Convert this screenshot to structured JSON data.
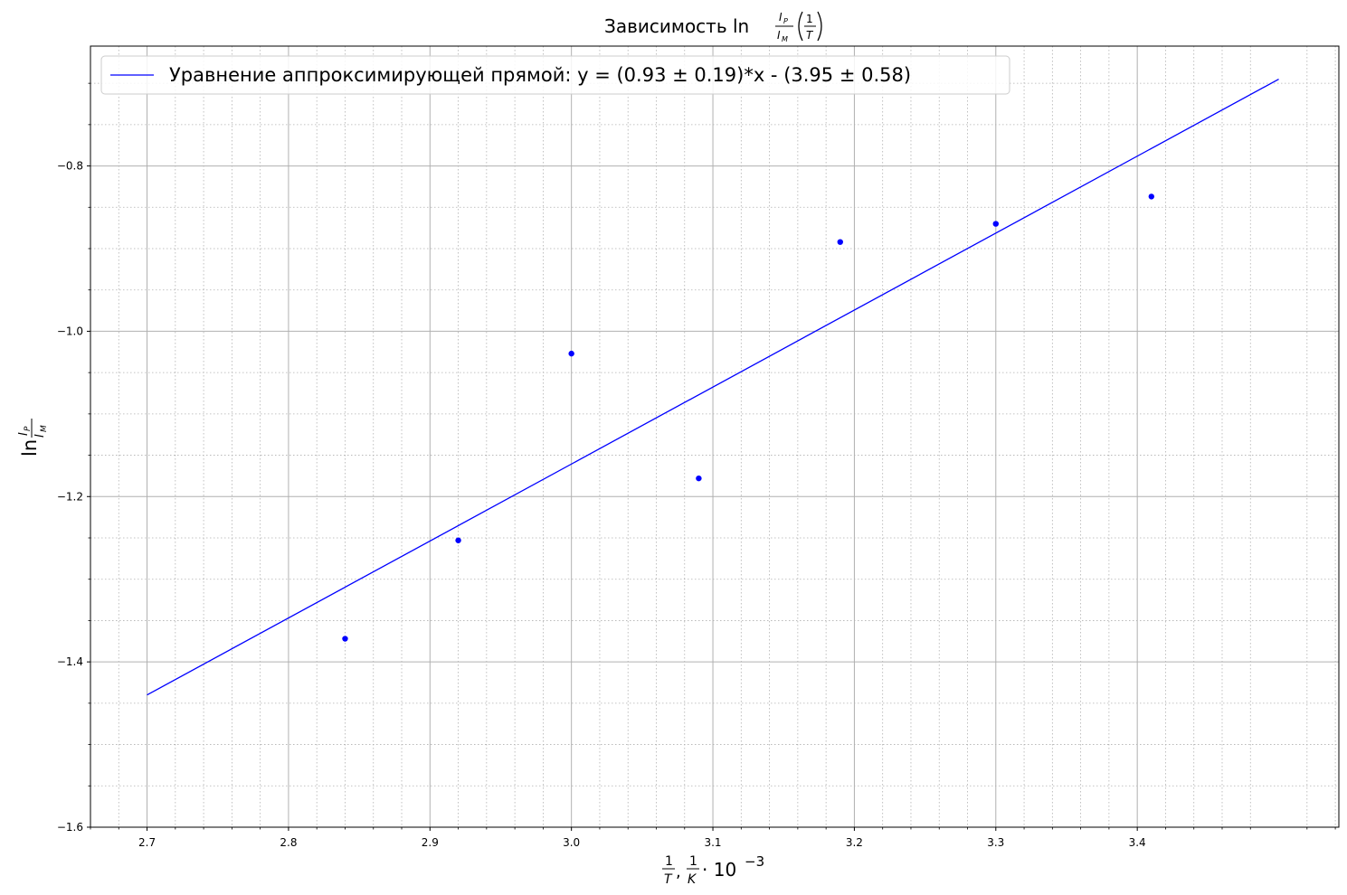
{
  "chart_data": {
    "type": "scatter",
    "title": {
      "prefix": "Зависимость ln",
      "frac_num": "I",
      "frac_num_sub": "P",
      "frac_den": "I",
      "frac_den_sub": "M",
      "paren_num": "1",
      "paren_den": "T"
    },
    "xlabel": {
      "frac1_num": "1",
      "frac1_den": "T",
      "sep": ",",
      "frac2_num": "1",
      "frac2_den": "K",
      "suffix": "· 10",
      "exponent": "−3"
    },
    "ylabel": {
      "prefix": "ln",
      "num": "I",
      "num_sub": "P",
      "den": "I",
      "den_sub": "M"
    },
    "xlim": [
      2.66,
      3.5425
    ],
    "ylim": [
      -1.6,
      -0.655
    ],
    "x_ticks": [
      2.7,
      2.8,
      2.9,
      3.0,
      3.1,
      3.2,
      3.3,
      3.4
    ],
    "x_tick_labels": [
      "2.7",
      "2.8",
      "2.9",
      "3.0",
      "3.1",
      "3.2",
      "3.3",
      "3.4"
    ],
    "y_ticks": [
      -1.6,
      -1.4,
      -1.2,
      -1.0,
      -0.8
    ],
    "y_tick_labels": [
      "−1.6",
      "−1.4",
      "−1.2",
      "−1.0",
      "−0.8"
    ],
    "grid": true,
    "minor_grid": true,
    "legend_position": "top-left",
    "series": [
      {
        "kind": "points",
        "color": "#0000ff",
        "x": [
          2.84,
          2.92,
          3.0,
          3.09,
          3.19,
          3.3,
          3.41
        ],
        "y": [
          -1.372,
          -1.253,
          -1.027,
          -1.178,
          -0.892,
          -0.87,
          -0.837
        ]
      },
      {
        "kind": "line",
        "name": "Уравнение аппроксимирующей прямой: y = (0.93 ± 0.19)*x - (3.95 ± 0.58)",
        "color": "#0000ff",
        "x": [
          2.7,
          3.5
        ],
        "y": [
          -1.44,
          -0.695
        ]
      }
    ]
  }
}
